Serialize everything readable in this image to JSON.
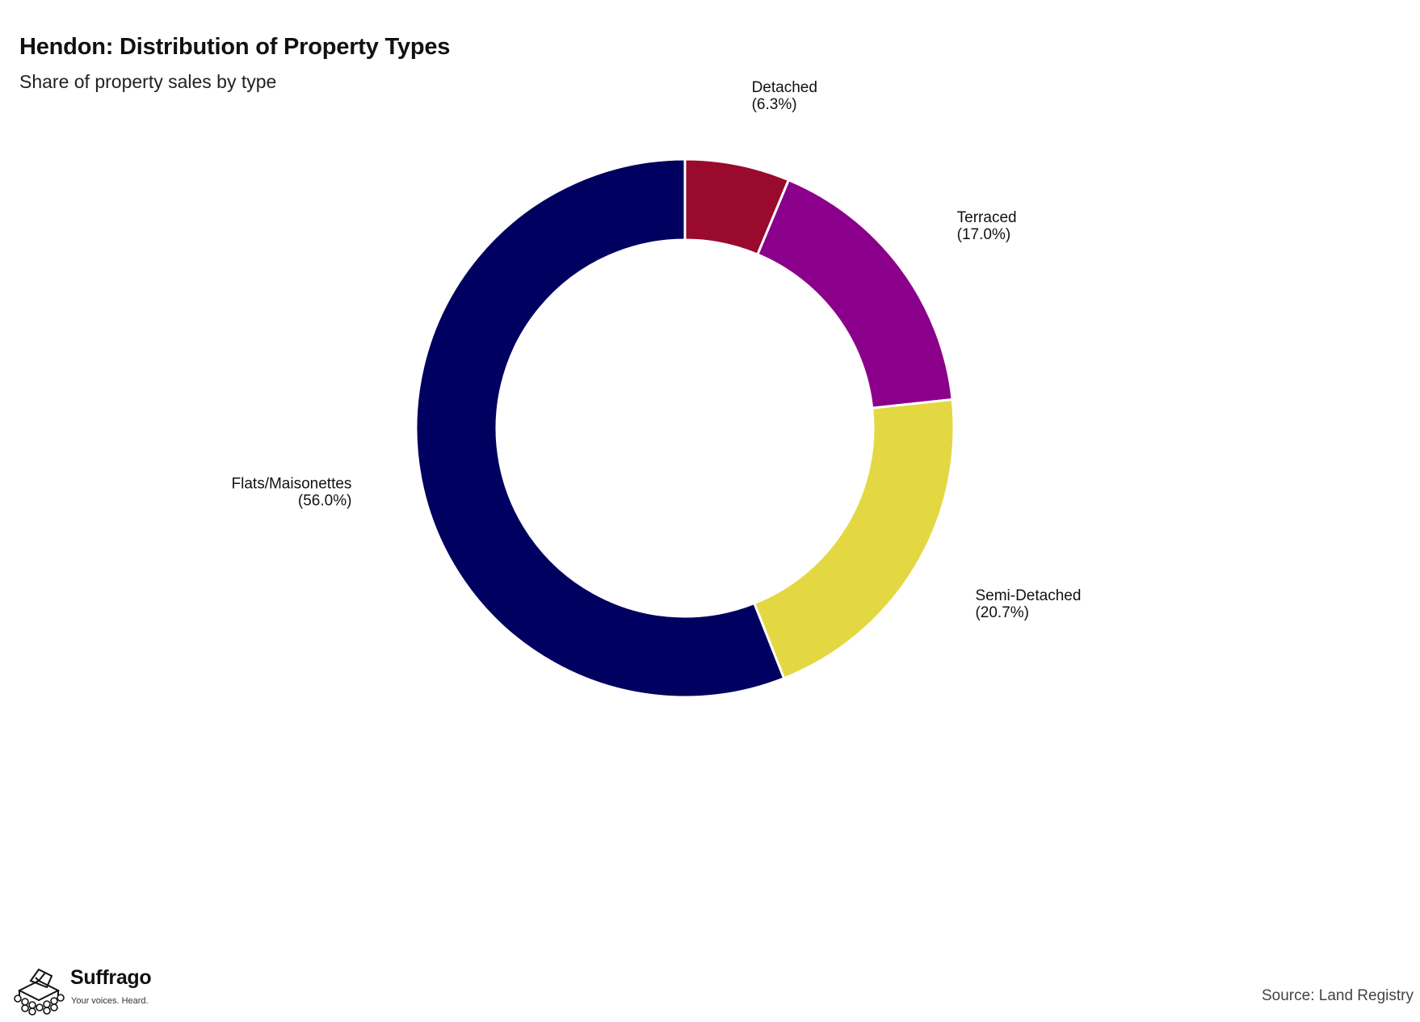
{
  "header": {
    "title": "Hendon: Distribution of Property Types",
    "subtitle": "Share of property sales by type"
  },
  "chart_data": {
    "type": "pie",
    "variant": "donut",
    "start": "top",
    "direction": "clockwise",
    "slices": [
      {
        "label": "Detached",
        "value": 6.3,
        "pct_label": "(6.3%)",
        "color": "#990a2d"
      },
      {
        "label": "Terraced",
        "value": 17.0,
        "pct_label": "(17.0%)",
        "color": "#8b008b"
      },
      {
        "label": "Semi-Detached",
        "value": 20.7,
        "pct_label": "(20.7%)",
        "color": "#e3d842"
      },
      {
        "label": "Flats/Maisonettes",
        "value": 56.0,
        "pct_label": "(56.0%)",
        "color": "#000060"
      }
    ]
  },
  "footer": {
    "source": "Source: Land Registry",
    "brand_name": "Suffrago",
    "brand_tagline": "Your voices. Heard."
  }
}
